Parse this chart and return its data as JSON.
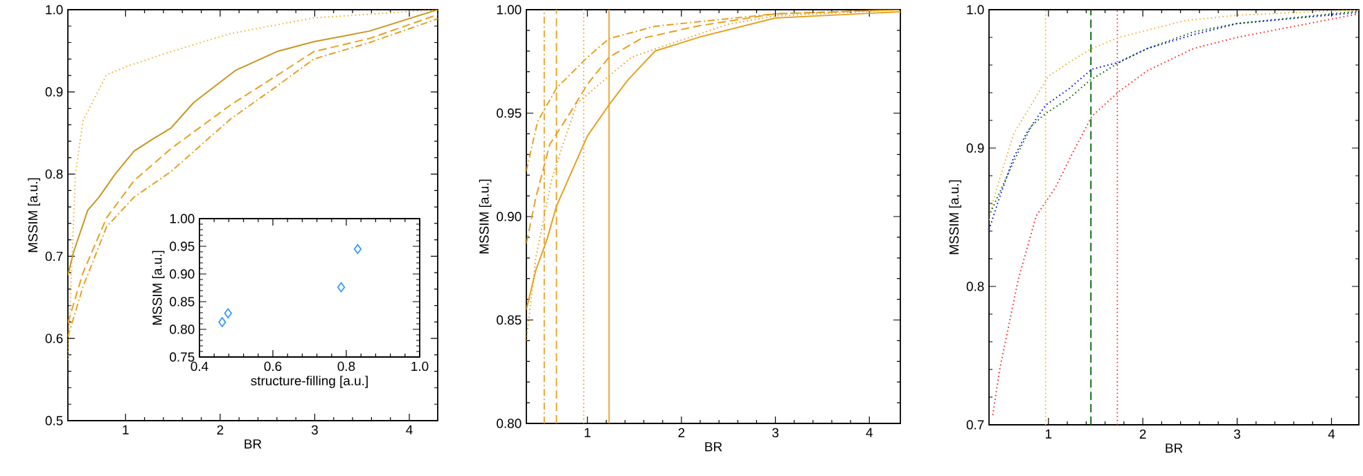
{
  "chart_data": [
    {
      "type": "line",
      "xlabel": "BR",
      "ylabel": "MSSIM [a.u.]",
      "xlim": [
        0.39,
        4.3
      ],
      "ylim": [
        0.5,
        1.0
      ],
      "xticks": [
        1,
        2,
        3,
        4
      ],
      "yticks": [
        0.5,
        0.6,
        0.7,
        0.8,
        0.9,
        {
          "value": 1.0,
          "label": "1.0"
        }
      ],
      "marker": "none",
      "series": [
        {
          "color": "#c8961e",
          "line_style": "solid",
          "x": [
            0.39,
            0.45,
            0.6,
            0.72,
            0.89,
            1.09,
            1.28,
            1.48,
            1.72,
            2.16,
            2.6,
            2.99,
            3.58,
            4.3
          ],
          "values": [
            0.677,
            0.705,
            0.756,
            0.772,
            0.8,
            0.828,
            0.842,
            0.856,
            0.887,
            0.926,
            0.949,
            0.961,
            0.974,
            1.0
          ]
        },
        {
          "color": "#e6a020",
          "line_style": "dashed",
          "x": [
            0.39,
            0.55,
            0.8,
            1.09,
            1.48,
            2.11,
            2.6,
            2.99,
            3.58,
            4.3
          ],
          "values": [
            0.619,
            0.68,
            0.747,
            0.792,
            0.831,
            0.884,
            0.92,
            0.949,
            0.965,
            0.994
          ]
        },
        {
          "color": "#e6a020",
          "line_style": "dashdot",
          "x": [
            0.39,
            0.55,
            0.8,
            1.09,
            1.48,
            2.11,
            2.6,
            2.99,
            3.58,
            4.3
          ],
          "values": [
            0.602,
            0.663,
            0.736,
            0.772,
            0.803,
            0.867,
            0.907,
            0.94,
            0.96,
            0.989
          ]
        },
        {
          "color": "#f0b030",
          "line_style": "dotted",
          "x": [
            0.39,
            0.47,
            0.55,
            0.8,
            1.04,
            1.48,
            2.11,
            2.99,
            4.3
          ],
          "values": [
            0.574,
            0.8,
            0.865,
            0.921,
            0.932,
            0.949,
            0.971,
            0.99,
            1.0
          ]
        }
      ]
    },
    {
      "type": "scatter",
      "xlabel": "structure-filling [a.u.]",
      "ylabel": "MSSIM [a.u.]",
      "xlim": [
        0.4,
        1.0
      ],
      "ylim": [
        0.75,
        1.0
      ],
      "xticks": [
        0.4,
        0.6,
        0.8,
        {
          "value": 1.0,
          "label": "1.0"
        }
      ],
      "yticks": [
        0.75,
        {
          "value": 0.8,
          "label": "0.80"
        },
        0.85,
        {
          "value": 0.9,
          "label": "0.90"
        },
        0.95,
        {
          "value": 1.0,
          "label": "1.00"
        }
      ],
      "marker": "diamond",
      "series": [
        {
          "color": "#3399ff",
          "x": [
            0.462,
            0.478,
            0.786,
            0.831
          ],
          "values": [
            0.813,
            0.829,
            0.876,
            0.945
          ]
        }
      ]
    },
    {
      "type": "line",
      "xlabel": "BR",
      "ylabel": "MSSIM [a.u.]",
      "xlim": [
        0.35,
        4.33
      ],
      "ylim": [
        0.8,
        1.0
      ],
      "xticks": [
        1,
        2,
        3,
        4
      ],
      "yticks": [
        {
          "value": 0.8,
          "label": "0.80"
        },
        0.85,
        {
          "value": 0.9,
          "label": "0.90"
        },
        0.95,
        {
          "value": 1.0,
          "label": "1.00"
        }
      ],
      "marker": "none",
      "series": [
        {
          "color": "#e6a020",
          "line_style": "solid",
          "x": [
            0.35,
            0.45,
            0.57,
            0.67,
            1.0,
            1.23,
            1.43,
            1.72,
            2.21,
            3.0,
            4.33
          ],
          "values": [
            0.855,
            0.874,
            0.889,
            0.905,
            0.939,
            0.954,
            0.966,
            0.98,
            0.987,
            0.996,
            0.999
          ]
        },
        {
          "color": "#e6a020",
          "line_style": "dotted",
          "x": [
            0.35,
            0.45,
            0.62,
            0.74,
            0.89,
            1.0,
            1.23,
            1.47,
            1.72,
            2.5,
            3.0,
            4.33
          ],
          "values": [
            0.84,
            0.88,
            0.918,
            0.935,
            0.955,
            0.959,
            0.968,
            0.977,
            0.981,
            0.993,
            0.997,
            1.0
          ]
        },
        {
          "color": "#e6a020",
          "line_style": "dashed",
          "x": [
            0.35,
            0.45,
            0.6,
            0.8,
            1.0,
            1.23,
            1.57,
            2.16,
            3.0,
            4.33
          ],
          "values": [
            0.887,
            0.909,
            0.935,
            0.949,
            0.964,
            0.977,
            0.986,
            0.992,
            0.998,
            1.0
          ]
        },
        {
          "color": "#e6a020",
          "line_style": "dashdot",
          "x": [
            0.35,
            0.47,
            0.67,
            1.0,
            1.23,
            1.72,
            3.0,
            4.33
          ],
          "values": [
            0.922,
            0.946,
            0.962,
            0.977,
            0.986,
            0.992,
            0.998,
            1.0
          ]
        }
      ],
      "ref_lines": [
        {
          "axis": "x",
          "value": 1.23,
          "color": "#e6a020",
          "line_style": "solid"
        },
        {
          "axis": "x",
          "value": 0.96,
          "color": "#e6a020",
          "line_style": "dotted"
        },
        {
          "axis": "x",
          "value": 0.67,
          "color": "#e6a020",
          "line_style": "dashed"
        },
        {
          "axis": "x",
          "value": 0.54,
          "color": "#e6a020",
          "line_style": "dashdot"
        }
      ]
    },
    {
      "type": "line",
      "xlabel": "BR",
      "ylabel": "MSSIM [a.u.]",
      "xlim": [
        0.37,
        4.29
      ],
      "ylim": [
        0.7,
        1.0
      ],
      "xticks": [
        1,
        2,
        3,
        4
      ],
      "yticks": [
        0.7,
        0.8,
        0.9,
        {
          "value": 1.0,
          "label": "1.0"
        }
      ],
      "marker": "none",
      "series": [
        {
          "color": "#f0b030",
          "line_style": "dotted",
          "x": [
            0.37,
            0.41,
            0.48,
            0.63,
            0.77,
            1.0,
            1.22,
            1.46,
            1.75,
            2.44,
            3.0,
            4.29
          ],
          "values": [
            0.848,
            0.861,
            0.877,
            0.91,
            0.926,
            0.952,
            0.962,
            0.972,
            0.98,
            0.992,
            0.996,
            1.0
          ]
        },
        {
          "color": "#0000ff",
          "line_style": "dotted",
          "x": [
            0.37,
            0.48,
            0.63,
            0.77,
            0.97,
            1.22,
            1.46,
            1.75,
            2.05,
            2.54,
            3.0,
            4.29
          ],
          "values": [
            0.841,
            0.864,
            0.893,
            0.911,
            0.931,
            0.943,
            0.957,
            0.962,
            0.972,
            0.982,
            0.99,
            0.998
          ]
        },
        {
          "color": "#006400",
          "line_style": "dotted",
          "x": [
            0.37,
            0.63,
            0.82,
            0.97,
            1.22,
            1.44,
            1.61,
            1.8,
            2.05,
            2.54,
            3.0,
            4.29
          ],
          "values": [
            0.851,
            0.89,
            0.916,
            0.925,
            0.936,
            0.949,
            0.956,
            0.964,
            0.972,
            0.984,
            0.99,
            0.999
          ]
        },
        {
          "color": "#ff2020",
          "line_style": "dotted",
          "x": [
            0.41,
            0.48,
            0.68,
            0.87,
            1.07,
            1.26,
            1.46,
            1.75,
            2.05,
            2.54,
            3.0,
            4.29
          ],
          "values": [
            0.707,
            0.739,
            0.805,
            0.851,
            0.871,
            0.897,
            0.923,
            0.941,
            0.956,
            0.972,
            0.98,
            0.997
          ]
        }
      ],
      "ref_lines": [
        {
          "axis": "x",
          "value": 0.97,
          "color": "#f0b030",
          "line_style": "dotted"
        },
        {
          "axis": "x",
          "value": 1.45,
          "color": "#006400",
          "line_style": "dashed"
        },
        {
          "axis": "x",
          "value": 1.73,
          "color": "#ff2020",
          "line_style": "dotted"
        }
      ]
    }
  ]
}
